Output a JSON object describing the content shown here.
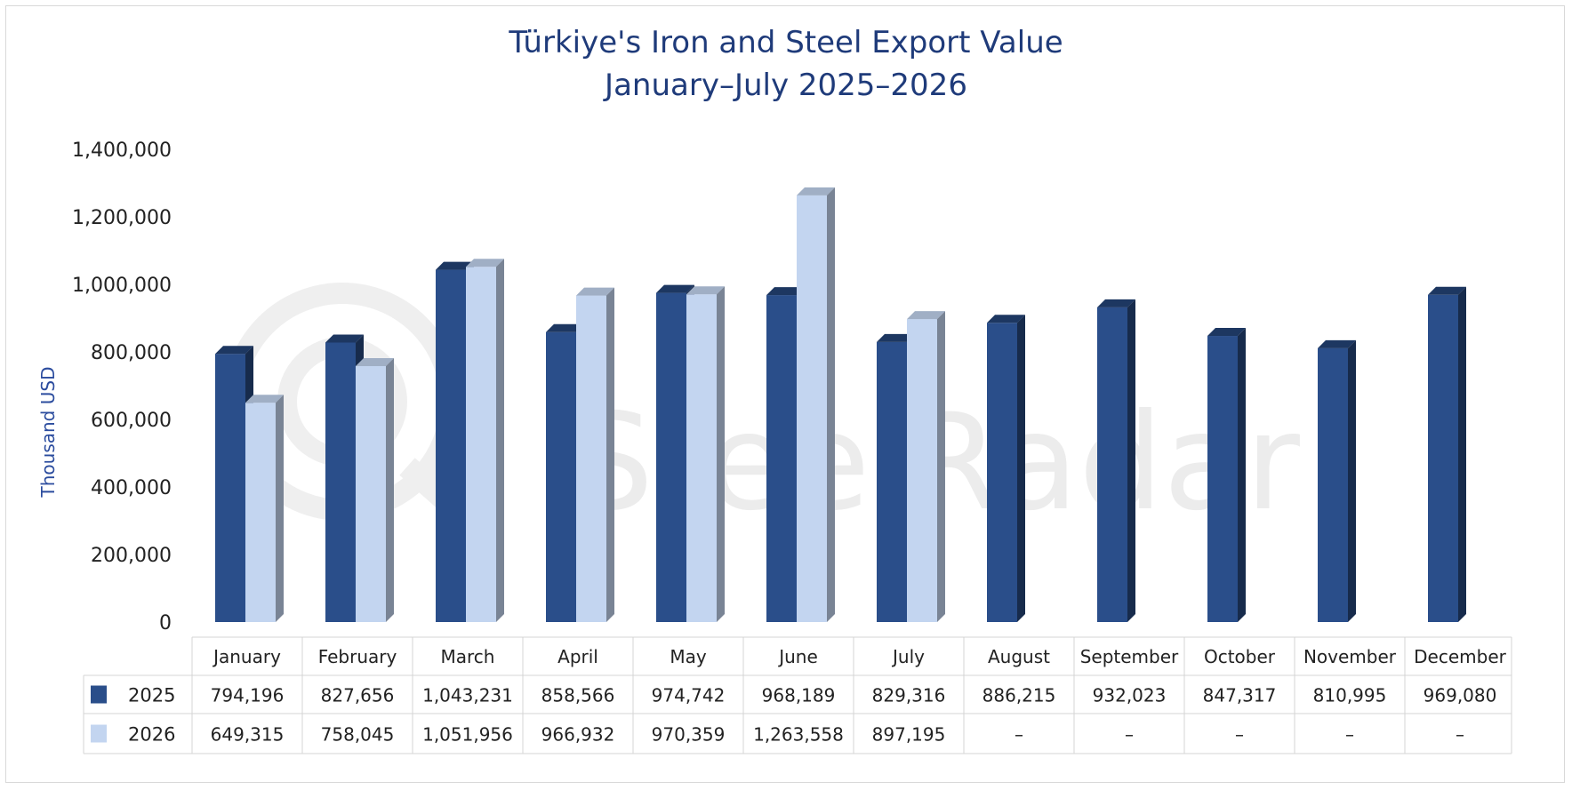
{
  "chart_data": {
    "type": "bar",
    "title": "Türkiye's Iron and Steel Export Value",
    "subtitle": "January–July 2025–2026",
    "ylabel": "Thousand USD",
    "xlabel": "",
    "ylim": [
      0,
      1400000
    ],
    "yticks": [
      "0",
      "200,000",
      "400,000",
      "600,000",
      "800,000",
      "1,000,000",
      "1,200,000",
      "1,400,000"
    ],
    "yticks_values": [
      0,
      200000,
      400000,
      600000,
      800000,
      1000000,
      1200000,
      1400000
    ],
    "categories": [
      "January",
      "February",
      "March",
      "April",
      "May",
      "June",
      "July",
      "August",
      "September",
      "October",
      "November",
      "December"
    ],
    "series": [
      {
        "name": "2025",
        "color": "#2a4e8a",
        "values": [
          794196,
          827656,
          1043231,
          858566,
          974742,
          968189,
          829316,
          886215,
          932023,
          847317,
          810995,
          969080
        ],
        "labels": [
          "794,196",
          "827,656",
          "1,043,231",
          "858,566",
          "974,742",
          "968,189",
          "829,316",
          "886,215",
          "932,023",
          "847,317",
          "810,995",
          "969,080"
        ]
      },
      {
        "name": "2026",
        "color": "#c3d5f0",
        "values": [
          649315,
          758045,
          1051956,
          966932,
          970359,
          1263558,
          897195,
          null,
          null,
          null,
          null,
          null
        ],
        "labels": [
          "649,315",
          "758,045",
          "1,051,956",
          "966,932",
          "970,359",
          "1,263,558",
          "897,195",
          "–",
          "–",
          "–",
          "–",
          "–"
        ]
      }
    ],
    "grid": false,
    "legend": "data-table",
    "watermark": "SteelRadar"
  }
}
